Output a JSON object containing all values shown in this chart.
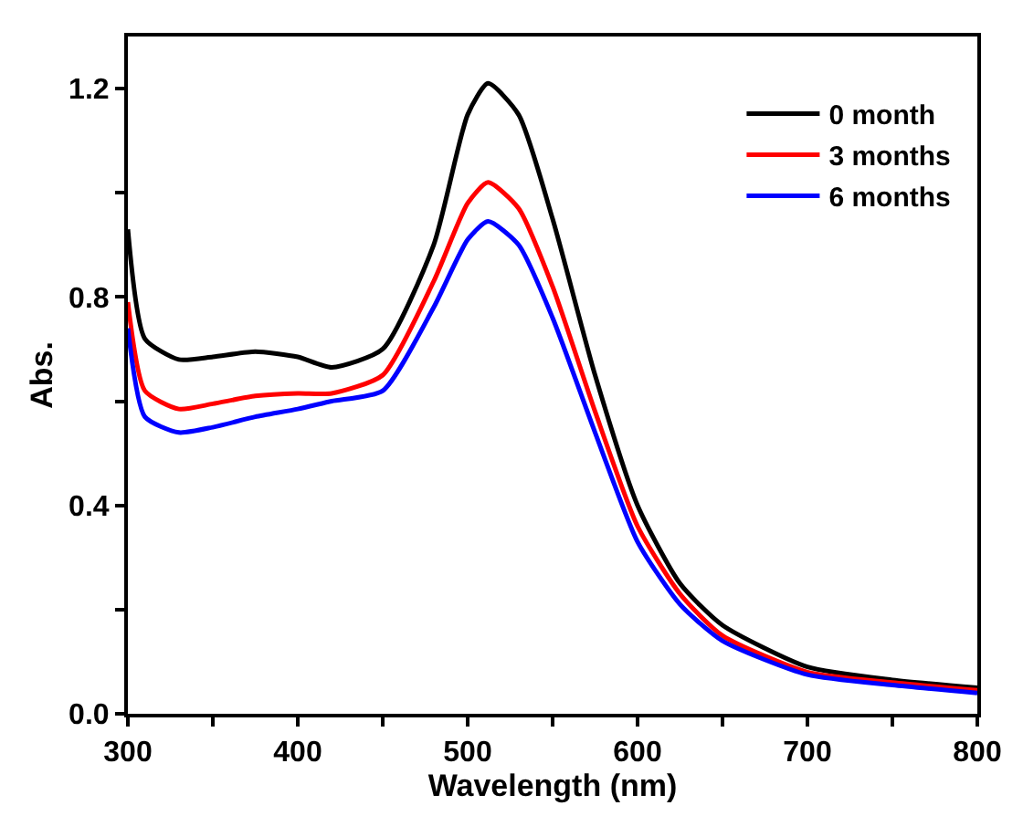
{
  "chart_data": {
    "type": "line",
    "xlabel": "Wavelength (nm)",
    "ylabel": "Abs.",
    "x": [
      300,
      310,
      330,
      350,
      375,
      400,
      420,
      450,
      480,
      500,
      512,
      530,
      550,
      575,
      600,
      625,
      650,
      700,
      750,
      800
    ],
    "series": [
      {
        "name": "0 month",
        "color": "#000000",
        "values": [
          0.93,
          0.72,
          0.68,
          0.685,
          0.695,
          0.685,
          0.665,
          0.7,
          0.9,
          1.15,
          1.21,
          1.15,
          0.95,
          0.65,
          0.4,
          0.25,
          0.17,
          0.09,
          0.065,
          0.05
        ]
      },
      {
        "name": "3 months",
        "color": "#ff0000",
        "values": [
          0.79,
          0.62,
          0.585,
          0.595,
          0.61,
          0.615,
          0.615,
          0.65,
          0.83,
          0.98,
          1.02,
          0.97,
          0.82,
          0.58,
          0.36,
          0.23,
          0.15,
          0.08,
          0.06,
          0.045
        ]
      },
      {
        "name": "6 months",
        "color": "#0000ff",
        "values": [
          0.74,
          0.57,
          0.54,
          0.55,
          0.57,
          0.585,
          0.6,
          0.62,
          0.78,
          0.91,
          0.945,
          0.9,
          0.76,
          0.54,
          0.33,
          0.21,
          0.14,
          0.075,
          0.055,
          0.04
        ]
      }
    ],
    "xlim": [
      300,
      800
    ],
    "ylim": [
      0,
      1.3
    ],
    "xticks": [
      300,
      {
        "value": 350,
        "label": null
      },
      400,
      {
        "value": 450,
        "label": null
      },
      500,
      {
        "value": 550,
        "label": null
      },
      600,
      {
        "value": 650,
        "label": null
      },
      700,
      {
        "value": 750,
        "label": null
      },
      800
    ],
    "yticks": [
      {
        "value": 0,
        "label": "0.0"
      },
      {
        "value": 0.2,
        "label": null
      },
      0.4,
      {
        "value": 0.6,
        "label": null
      },
      0.8,
      {
        "value": 1.0,
        "label": null
      },
      1.2
    ],
    "legend": "top right",
    "line_style": "solid",
    "marker": "none"
  }
}
